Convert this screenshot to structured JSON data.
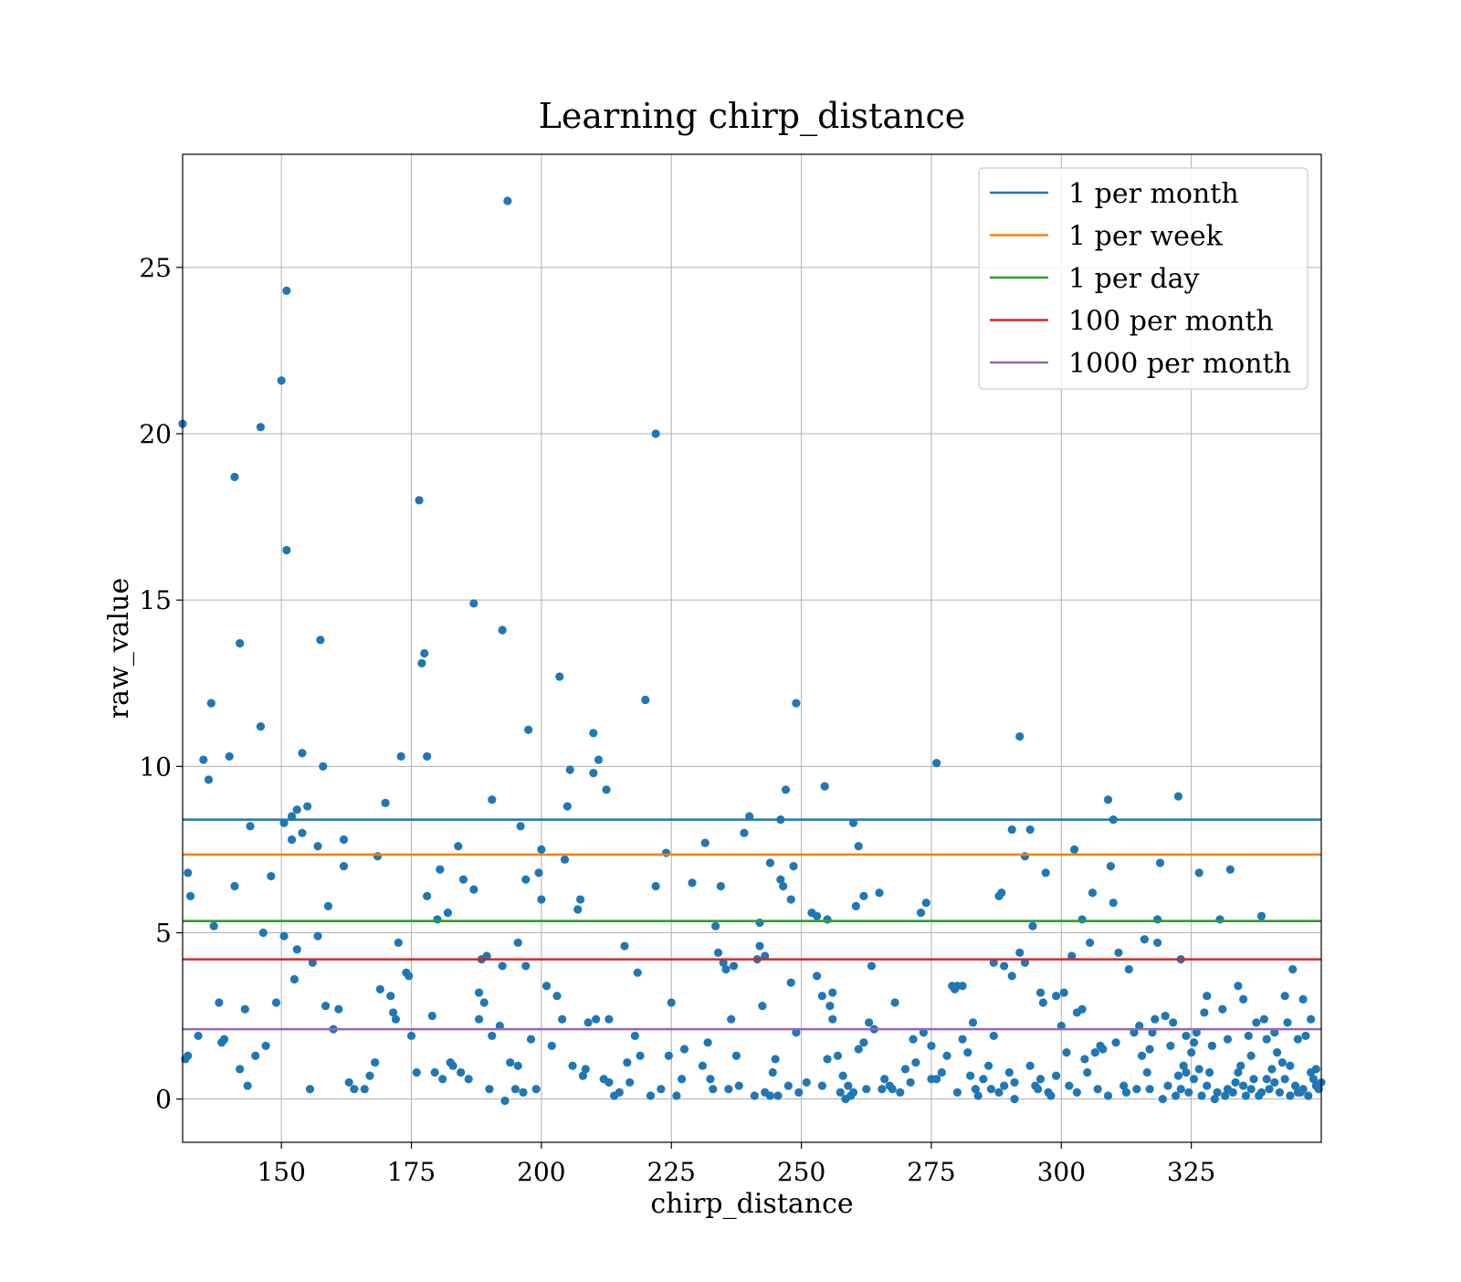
{
  "chart_data": {
    "type": "scatter",
    "title": "Learning chirp_distance",
    "xlabel": "chirp_distance",
    "ylabel": "raw_value",
    "xlim": [
      131,
      350
    ],
    "ylim": [
      -1.3,
      28.4
    ],
    "xticks": [
      150,
      175,
      200,
      225,
      250,
      275,
      300,
      325
    ],
    "yticks": [
      0,
      5,
      10,
      15,
      20,
      25
    ],
    "grid": true,
    "legend_position": "top-right",
    "point_color": "#1f77b4",
    "hlines": [
      {
        "name": "1 per month",
        "y": 8.4,
        "color": "#1f77b4"
      },
      {
        "name": "1 per week",
        "y": 7.35,
        "color": "#ff7f0e"
      },
      {
        "name": "1 per day",
        "y": 5.35,
        "color": "#2ca02c"
      },
      {
        "name": "100 per month",
        "y": 4.2,
        "color": "#d62728"
      },
      {
        "name": "1000 per month",
        "y": 2.1,
        "color": "#9467bd"
      }
    ],
    "points": [
      [
        131,
        20.3
      ],
      [
        132,
        6.8
      ],
      [
        132.5,
        6.1
      ],
      [
        131.5,
        1.2
      ],
      [
        132,
        1.3
      ],
      [
        134,
        1.9
      ],
      [
        135,
        10.2
      ],
      [
        136,
        9.6
      ],
      [
        136.5,
        11.9
      ],
      [
        137,
        5.2
      ],
      [
        138,
        2.9
      ],
      [
        138.5,
        1.7
      ],
      [
        139,
        1.8
      ],
      [
        140,
        10.3
      ],
      [
        141,
        18.7
      ],
      [
        141,
        6.4
      ],
      [
        142,
        13.7
      ],
      [
        142,
        0.9
      ],
      [
        143,
        2.7
      ],
      [
        143.5,
        0.4
      ],
      [
        144,
        8.2
      ],
      [
        145,
        1.3
      ],
      [
        146,
        11.2
      ],
      [
        146,
        20.2
      ],
      [
        146.5,
        5.0
      ],
      [
        147,
        1.6
      ],
      [
        148,
        6.7
      ],
      [
        149,
        2.9
      ],
      [
        150,
        21.6
      ],
      [
        150.5,
        4.9
      ],
      [
        150.5,
        8.3
      ],
      [
        151,
        24.3
      ],
      [
        151,
        16.5
      ],
      [
        152,
        7.8
      ],
      [
        152,
        8.5
      ],
      [
        152.5,
        3.6
      ],
      [
        153,
        4.5
      ],
      [
        153,
        8.7
      ],
      [
        154,
        10.4
      ],
      [
        154,
        8.0
      ],
      [
        155,
        8.8
      ],
      [
        155.5,
        0.3
      ],
      [
        156,
        4.1
      ],
      [
        157,
        4.9
      ],
      [
        157,
        7.6
      ],
      [
        157.5,
        13.8
      ],
      [
        158,
        10.0
      ],
      [
        158.5,
        2.8
      ],
      [
        159,
        5.8
      ],
      [
        160,
        2.1
      ],
      [
        161,
        2.7
      ],
      [
        162,
        7.0
      ],
      [
        162,
        7.8
      ],
      [
        163,
        0.5
      ],
      [
        164,
        0.3
      ],
      [
        166,
        0.3
      ],
      [
        167,
        0.7
      ],
      [
        168,
        1.1
      ],
      [
        168.5,
        7.3
      ],
      [
        169,
        3.3
      ],
      [
        170,
        8.9
      ],
      [
        171,
        3.1
      ],
      [
        171.5,
        2.6
      ],
      [
        172,
        2.4
      ],
      [
        172.5,
        4.7
      ],
      [
        173,
        10.3
      ],
      [
        174,
        3.8
      ],
      [
        174.5,
        3.7
      ],
      [
        175,
        1.9
      ],
      [
        176,
        0.8
      ],
      [
        176.5,
        18.0
      ],
      [
        177,
        13.1
      ],
      [
        177.5,
        13.4
      ],
      [
        178,
        10.3
      ],
      [
        178,
        6.1
      ],
      [
        179,
        2.5
      ],
      [
        179.5,
        0.8
      ],
      [
        180,
        5.4
      ],
      [
        180.5,
        6.9
      ],
      [
        181,
        0.6
      ],
      [
        182,
        5.6
      ],
      [
        182.5,
        1.1
      ],
      [
        183,
        1.0
      ],
      [
        184,
        7.6
      ],
      [
        184.5,
        0.8
      ],
      [
        185,
        6.6
      ],
      [
        186,
        0.6
      ],
      [
        187,
        14.9
      ],
      [
        187,
        6.3
      ],
      [
        188,
        2.4
      ],
      [
        188,
        3.2
      ],
      [
        188.5,
        4.2
      ],
      [
        189,
        2.9
      ],
      [
        189.5,
        4.3
      ],
      [
        190,
        0.3
      ],
      [
        190.5,
        1.9
      ],
      [
        190.5,
        9.0
      ],
      [
        192,
        2.2
      ],
      [
        192.5,
        14.1
      ],
      [
        192.5,
        4.0
      ],
      [
        193,
        -0.05
      ],
      [
        193.5,
        27.0
      ],
      [
        194,
        1.1
      ],
      [
        195,
        0.3
      ],
      [
        195.5,
        1.0
      ],
      [
        195.5,
        4.7
      ],
      [
        196,
        8.2
      ],
      [
        196.5,
        0.2
      ],
      [
        197,
        6.6
      ],
      [
        197,
        4.0
      ],
      [
        197.5,
        11.1
      ],
      [
        198,
        1.8
      ],
      [
        199,
        0.3
      ],
      [
        199.5,
        6.8
      ],
      [
        200,
        6.0
      ],
      [
        200,
        7.5
      ],
      [
        201,
        3.4
      ],
      [
        202,
        1.6
      ],
      [
        203,
        3.1
      ],
      [
        203.5,
        12.7
      ],
      [
        204,
        2.4
      ],
      [
        204.5,
        7.2
      ],
      [
        205,
        8.8
      ],
      [
        205.5,
        9.9
      ],
      [
        206,
        1.0
      ],
      [
        207,
        5.7
      ],
      [
        207.5,
        6.0
      ],
      [
        208,
        0.7
      ],
      [
        208.5,
        0.9
      ],
      [
        209,
        2.3
      ],
      [
        210,
        11.0
      ],
      [
        210,
        9.8
      ],
      [
        210.5,
        2.4
      ],
      [
        211,
        10.2
      ],
      [
        212,
        0.6
      ],
      [
        212.5,
        9.3
      ],
      [
        213,
        2.4
      ],
      [
        213,
        0.5
      ],
      [
        214,
        0.1
      ],
      [
        215,
        0.2
      ],
      [
        216,
        4.6
      ],
      [
        216.5,
        1.1
      ],
      [
        217,
        0.5
      ],
      [
        218,
        1.9
      ],
      [
        218.5,
        3.8
      ],
      [
        219,
        1.3
      ],
      [
        220,
        12.0
      ],
      [
        221,
        0.1
      ],
      [
        222,
        6.4
      ],
      [
        222,
        20.0
      ],
      [
        223,
        0.3
      ],
      [
        224,
        7.4
      ],
      [
        224.5,
        1.3
      ],
      [
        225,
        2.9
      ],
      [
        226,
        0.1
      ],
      [
        227,
        0.6
      ],
      [
        227.5,
        1.5
      ],
      [
        229,
        6.5
      ],
      [
        231,
        1.0
      ],
      [
        231.5,
        7.7
      ],
      [
        232,
        1.7
      ],
      [
        232.5,
        0.6
      ],
      [
        233,
        0.3
      ],
      [
        233.5,
        5.2
      ],
      [
        234,
        4.4
      ],
      [
        234.5,
        6.4
      ],
      [
        235,
        4.1
      ],
      [
        235.5,
        3.9
      ],
      [
        236,
        0.3
      ],
      [
        236.5,
        2.4
      ],
      [
        237,
        4.0
      ],
      [
        237.5,
        1.3
      ],
      [
        238,
        0.4
      ],
      [
        239,
        8.0
      ],
      [
        240,
        8.5
      ],
      [
        241,
        0.1
      ],
      [
        241.5,
        4.2
      ],
      [
        242,
        5.3
      ],
      [
        242,
        4.6
      ],
      [
        242.5,
        2.8
      ],
      [
        243,
        4.3
      ],
      [
        243,
        0.2
      ],
      [
        244,
        7.1
      ],
      [
        244,
        0.1
      ],
      [
        244.5,
        0.8
      ],
      [
        245,
        1.2
      ],
      [
        245.5,
        0.1
      ],
      [
        246,
        8.4
      ],
      [
        246,
        6.6
      ],
      [
        246.5,
        6.4
      ],
      [
        247,
        9.3
      ],
      [
        247.5,
        0.4
      ],
      [
        248,
        6.0
      ],
      [
        248,
        3.5
      ],
      [
        248.5,
        7.0
      ],
      [
        249,
        11.9
      ],
      [
        249,
        2.0
      ],
      [
        249.5,
        0.2
      ],
      [
        251,
        0.5
      ],
      [
        252,
        5.6
      ],
      [
        253,
        3.7
      ],
      [
        253,
        5.5
      ],
      [
        254,
        3.1
      ],
      [
        254,
        0.4
      ],
      [
        254.5,
        9.4
      ],
      [
        255,
        5.4
      ],
      [
        255,
        1.2
      ],
      [
        255.5,
        2.8
      ],
      [
        256,
        2.4
      ],
      [
        256,
        3.2
      ],
      [
        257,
        1.3
      ],
      [
        257.5,
        0.2
      ],
      [
        258,
        0.7
      ],
      [
        258.5,
        0.0
      ],
      [
        259,
        0.4
      ],
      [
        259.5,
        0.1
      ],
      [
        260,
        8.3
      ],
      [
        260,
        0.2
      ],
      [
        260.5,
        5.8
      ],
      [
        261,
        7.6
      ],
      [
        261,
        1.5
      ],
      [
        262,
        6.1
      ],
      [
        262,
        1.7
      ],
      [
        262.5,
        0.3
      ],
      [
        263,
        2.3
      ],
      [
        263.5,
        4.0
      ],
      [
        264,
        2.1
      ],
      [
        265,
        6.2
      ],
      [
        265.5,
        0.3
      ],
      [
        266,
        0.6
      ],
      [
        267,
        0.4
      ],
      [
        267.5,
        0.3
      ],
      [
        268,
        2.9
      ],
      [
        269,
        0.2
      ],
      [
        270,
        0.9
      ],
      [
        271,
        0.5
      ],
      [
        271.5,
        1.8
      ],
      [
        272,
        1.1
      ],
      [
        273,
        5.6
      ],
      [
        273.5,
        2.0
      ],
      [
        274,
        5.9
      ],
      [
        275,
        0.6
      ],
      [
        275,
        1.6
      ],
      [
        276,
        10.1
      ],
      [
        276,
        0.6
      ],
      [
        277,
        0.8
      ],
      [
        278,
        1.3
      ],
      [
        279,
        3.4
      ],
      [
        279.5,
        3.3
      ],
      [
        280,
        3.4
      ],
      [
        280,
        0.2
      ],
      [
        281,
        1.8
      ],
      [
        281,
        3.4
      ],
      [
        282,
        1.4
      ],
      [
        282.5,
        0.7
      ],
      [
        283,
        2.3
      ],
      [
        283.5,
        0.3
      ],
      [
        284,
        0.1
      ],
      [
        285,
        0.6
      ],
      [
        286,
        1.0
      ],
      [
        286.5,
        0.3
      ],
      [
        287,
        4.1
      ],
      [
        287,
        1.9
      ],
      [
        288,
        6.1
      ],
      [
        288,
        0.2
      ],
      [
        288.5,
        6.2
      ],
      [
        289,
        0.4
      ],
      [
        289,
        4.0
      ],
      [
        290,
        0.8
      ],
      [
        290.5,
        3.7
      ],
      [
        290.5,
        8.1
      ],
      [
        291,
        0.0
      ],
      [
        291,
        0.5
      ],
      [
        292,
        10.9
      ],
      [
        292,
        4.4
      ],
      [
        293,
        4.1
      ],
      [
        293,
        7.3
      ],
      [
        294,
        8.1
      ],
      [
        294,
        1.0
      ],
      [
        294.5,
        5.2
      ],
      [
        295,
        0.4
      ],
      [
        295.5,
        0.3
      ],
      [
        296,
        0.6
      ],
      [
        296,
        3.2
      ],
      [
        296.5,
        2.9
      ],
      [
        297,
        6.8
      ],
      [
        297.5,
        0.2
      ],
      [
        298,
        0.1
      ],
      [
        299,
        0.7
      ],
      [
        299,
        3.1
      ],
      [
        300,
        2.2
      ],
      [
        300.5,
        3.2
      ],
      [
        301,
        1.4
      ],
      [
        301.5,
        0.4
      ],
      [
        302,
        4.3
      ],
      [
        302.5,
        7.5
      ],
      [
        303,
        2.6
      ],
      [
        303,
        0.2
      ],
      [
        304,
        5.4
      ],
      [
        304,
        2.7
      ],
      [
        304.5,
        1.2
      ],
      [
        305,
        0.8
      ],
      [
        305.5,
        4.7
      ],
      [
        306,
        6.2
      ],
      [
        306.5,
        1.4
      ],
      [
        307,
        0.3
      ],
      [
        307.5,
        1.6
      ],
      [
        308,
        1.5
      ],
      [
        309,
        9.0
      ],
      [
        309,
        0.1
      ],
      [
        309.5,
        7.0
      ],
      [
        310,
        5.9
      ],
      [
        310,
        8.4
      ],
      [
        310.5,
        1.7
      ],
      [
        311,
        4.4
      ],
      [
        312,
        0.4
      ],
      [
        312.5,
        0.2
      ],
      [
        313,
        3.9
      ],
      [
        314,
        2.0
      ],
      [
        314.5,
        0.3
      ],
      [
        315,
        2.2
      ],
      [
        315.5,
        1.3
      ],
      [
        316,
        4.8
      ],
      [
        316.5,
        0.8
      ],
      [
        317,
        0.3
      ],
      [
        317,
        1.5
      ],
      [
        317.5,
        2.0
      ],
      [
        318,
        2.4
      ],
      [
        318.5,
        5.4
      ],
      [
        318.5,
        4.7
      ],
      [
        319,
        7.1
      ],
      [
        319.5,
        0.0
      ],
      [
        320,
        2.5
      ],
      [
        320.5,
        0.4
      ],
      [
        321,
        1.6
      ],
      [
        321.5,
        2.3
      ],
      [
        322,
        0.1
      ],
      [
        322.5,
        0.7
      ],
      [
        322.5,
        9.1
      ],
      [
        323,
        0.3
      ],
      [
        323,
        4.2
      ],
      [
        323.5,
        1.0
      ],
      [
        324,
        0.8
      ],
      [
        324,
        1.9
      ],
      [
        324.5,
        0.2
      ],
      [
        325,
        1.4
      ],
      [
        325.5,
        1.7
      ],
      [
        325.5,
        0.6
      ],
      [
        326,
        2.0
      ],
      [
        326.5,
        0.9
      ],
      [
        326.5,
        6.8
      ],
      [
        327,
        0.1
      ],
      [
        327.5,
        2.6
      ],
      [
        328,
        0.4
      ],
      [
        328,
        3.1
      ],
      [
        328.5,
        0.8
      ],
      [
        329,
        1.6
      ],
      [
        329.5,
        0.0
      ],
      [
        330,
        0.2
      ],
      [
        330.5,
        5.4
      ],
      [
        331,
        2.7
      ],
      [
        331.5,
        0.1
      ],
      [
        332,
        0.3
      ],
      [
        332,
        1.8
      ],
      [
        332.5,
        6.9
      ],
      [
        333,
        0.2
      ],
      [
        333.5,
        0.5
      ],
      [
        334,
        3.4
      ],
      [
        334,
        0.8
      ],
      [
        334.5,
        1.0
      ],
      [
        335,
        0.4
      ],
      [
        335,
        3.0
      ],
      [
        335.5,
        0.1
      ],
      [
        336,
        1.9
      ],
      [
        336.5,
        1.3
      ],
      [
        336.5,
        0.3
      ],
      [
        337,
        0.6
      ],
      [
        337.5,
        2.3
      ],
      [
        338,
        0.1
      ],
      [
        338.5,
        5.5
      ],
      [
        338.5,
        0.2
      ],
      [
        339,
        2.4
      ],
      [
        339.5,
        0.6
      ],
      [
        339.5,
        1.8
      ],
      [
        340,
        0.3
      ],
      [
        340.5,
        0.9
      ],
      [
        341,
        0.5
      ],
      [
        341,
        2.0
      ],
      [
        341.5,
        1.4
      ],
      [
        342,
        0.2
      ],
      [
        342.5,
        1.1
      ],
      [
        343,
        0.6
      ],
      [
        343,
        3.1
      ],
      [
        343.5,
        2.3
      ],
      [
        344,
        0.1
      ],
      [
        344,
        1.0
      ],
      [
        344.5,
        3.9
      ],
      [
        345,
        0.4
      ],
      [
        345.5,
        0.2
      ],
      [
        345.5,
        1.8
      ],
      [
        346,
        0.2
      ],
      [
        346.5,
        0.3
      ],
      [
        346.5,
        3.0
      ],
      [
        347,
        1.9
      ],
      [
        347.5,
        0.1
      ],
      [
        348,
        0.8
      ],
      [
        348,
        2.4
      ],
      [
        348.5,
        0.6
      ],
      [
        349,
        0.4
      ],
      [
        349,
        0.9
      ],
      [
        349.5,
        0.3
      ],
      [
        350,
        0.5
      ]
    ]
  }
}
